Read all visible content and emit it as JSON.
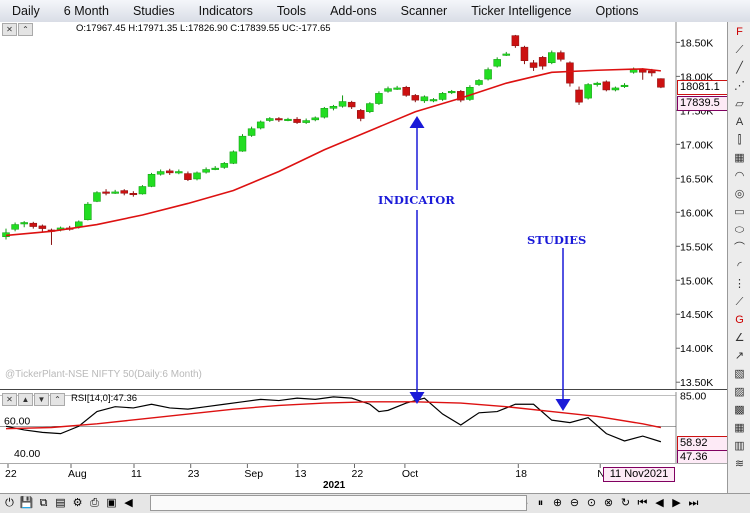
{
  "menu": [
    "Daily",
    "6 Month",
    "Studies",
    "Indicators",
    "Tools",
    "Add-ons",
    "Scanner",
    "Ticker Intelligence",
    "Options"
  ],
  "ohlc": "O:17967.45  H:17971.35  L:17826.90  C:17839.55  UC:-177.65",
  "watermark": "@TickerPlant-NSE NIFTY 50(Daily:6 Month)",
  "price_labels": {
    "sma": "18081.1",
    "close": "17839.5"
  },
  "rsi": {
    "label": "RSI[14,0]:47.36",
    "value_label": "47.36",
    "sma_label": "58.92"
  },
  "rsi_scale": [
    "85.00",
    "60.00",
    "40.00"
  ],
  "yaxis": [
    "18.50K",
    "18.00K",
    "17.50K",
    "17.00K",
    "16.50K",
    "16.00K",
    "15.50K",
    "15.00K",
    "14.50K",
    "14.00K",
    "13.50K"
  ],
  "xaxis": [
    "22",
    "Aug",
    "11",
    "23",
    "Sep",
    "13",
    "22",
    "Oct",
    "18",
    "N"
  ],
  "year": "2021",
  "date_box": "11 Nov2021",
  "annotations": {
    "indicator": "INDICATOR",
    "studies": "STUDIES"
  },
  "colors": {
    "up": "#22dd22",
    "down": "#cc1111",
    "sma": "#dd1111",
    "annotation": "#1a1ad8"
  },
  "chart_data": {
    "type": "candlestick",
    "candles": [
      {
        "x": 0,
        "o": 15640,
        "c": 15700,
        "h": 15760,
        "l": 15600
      },
      {
        "x": 1,
        "o": 15750,
        "c": 15820,
        "h": 15850,
        "l": 15720
      },
      {
        "x": 2,
        "o": 15830,
        "c": 15850,
        "h": 15870,
        "l": 15780
      },
      {
        "x": 3,
        "o": 15840,
        "c": 15790,
        "h": 15860,
        "l": 15760
      },
      {
        "x": 4,
        "o": 15800,
        "c": 15760,
        "h": 15820,
        "l": 15700
      },
      {
        "x": 5,
        "o": 15740,
        "c": 15720,
        "h": 15760,
        "l": 15520
      },
      {
        "x": 6,
        "o": 15740,
        "c": 15770,
        "h": 15790,
        "l": 15720
      },
      {
        "x": 7,
        "o": 15770,
        "c": 15760,
        "h": 15800,
        "l": 15730
      },
      {
        "x": 8,
        "o": 15780,
        "c": 15860,
        "h": 15880,
        "l": 15760
      },
      {
        "x": 9,
        "o": 15890,
        "c": 16120,
        "h": 16150,
        "l": 15880
      },
      {
        "x": 10,
        "o": 16160,
        "c": 16290,
        "h": 16310,
        "l": 16150
      },
      {
        "x": 11,
        "o": 16300,
        "c": 16280,
        "h": 16340,
        "l": 16250
      },
      {
        "x": 12,
        "o": 16290,
        "c": 16300,
        "h": 16330,
        "l": 16270
      },
      {
        "x": 13,
        "o": 16320,
        "c": 16280,
        "h": 16340,
        "l": 16250
      },
      {
        "x": 14,
        "o": 16280,
        "c": 16260,
        "h": 16310,
        "l": 16230
      },
      {
        "x": 15,
        "o": 16270,
        "c": 16380,
        "h": 16400,
        "l": 16260
      },
      {
        "x": 16,
        "o": 16380,
        "c": 16560,
        "h": 16580,
        "l": 16370
      },
      {
        "x": 17,
        "o": 16560,
        "c": 16600,
        "h": 16630,
        "l": 16540
      },
      {
        "x": 18,
        "o": 16610,
        "c": 16580,
        "h": 16640,
        "l": 16550
      },
      {
        "x": 19,
        "o": 16580,
        "c": 16600,
        "h": 16630,
        "l": 16560
      },
      {
        "x": 20,
        "o": 16570,
        "c": 16480,
        "h": 16600,
        "l": 16460
      },
      {
        "x": 21,
        "o": 16490,
        "c": 16580,
        "h": 16600,
        "l": 16470
      },
      {
        "x": 22,
        "o": 16590,
        "c": 16630,
        "h": 16660,
        "l": 16570
      },
      {
        "x": 23,
        "o": 16640,
        "c": 16650,
        "h": 16680,
        "l": 16620
      },
      {
        "x": 24,
        "o": 16660,
        "c": 16720,
        "h": 16740,
        "l": 16640
      },
      {
        "x": 25,
        "o": 16720,
        "c": 16890,
        "h": 16910,
        "l": 16710
      },
      {
        "x": 26,
        "o": 16900,
        "c": 17120,
        "h": 17150,
        "l": 16890
      },
      {
        "x": 27,
        "o": 17130,
        "c": 17230,
        "h": 17260,
        "l": 17110
      },
      {
        "x": 28,
        "o": 17240,
        "c": 17330,
        "h": 17350,
        "l": 17220
      },
      {
        "x": 29,
        "o": 17350,
        "c": 17380,
        "h": 17400,
        "l": 17330
      },
      {
        "x": 30,
        "o": 17380,
        "c": 17360,
        "h": 17400,
        "l": 17330
      },
      {
        "x": 31,
        "o": 17360,
        "c": 17370,
        "h": 17390,
        "l": 17340
      },
      {
        "x": 32,
        "o": 17370,
        "c": 17320,
        "h": 17400,
        "l": 17300
      },
      {
        "x": 33,
        "o": 17320,
        "c": 17350,
        "h": 17380,
        "l": 17300
      },
      {
        "x": 34,
        "o": 17360,
        "c": 17390,
        "h": 17410,
        "l": 17340
      },
      {
        "x": 35,
        "o": 17400,
        "c": 17530,
        "h": 17550,
        "l": 17380
      },
      {
        "x": 36,
        "o": 17530,
        "c": 17560,
        "h": 17580,
        "l": 17500
      },
      {
        "x": 37,
        "o": 17560,
        "c": 17630,
        "h": 17720,
        "l": 17540
      },
      {
        "x": 38,
        "o": 17620,
        "c": 17550,
        "h": 17640,
        "l": 17520
      },
      {
        "x": 39,
        "o": 17500,
        "c": 17380,
        "h": 17520,
        "l": 17340
      },
      {
        "x": 40,
        "o": 17480,
        "c": 17600,
        "h": 17620,
        "l": 17460
      },
      {
        "x": 41,
        "o": 17600,
        "c": 17750,
        "h": 17780,
        "l": 17580
      },
      {
        "x": 42,
        "o": 17780,
        "c": 17820,
        "h": 17850,
        "l": 17760
      },
      {
        "x": 43,
        "o": 17820,
        "c": 17830,
        "h": 17860,
        "l": 17800
      },
      {
        "x": 44,
        "o": 17840,
        "c": 17720,
        "h": 17860,
        "l": 17700
      },
      {
        "x": 45,
        "o": 17720,
        "c": 17650,
        "h": 17740,
        "l": 17620
      },
      {
        "x": 46,
        "o": 17640,
        "c": 17700,
        "h": 17720,
        "l": 17610
      },
      {
        "x": 47,
        "o": 17640,
        "c": 17660,
        "h": 17680,
        "l": 17620
      },
      {
        "x": 48,
        "o": 17660,
        "c": 17750,
        "h": 17770,
        "l": 17640
      },
      {
        "x": 49,
        "o": 17760,
        "c": 17780,
        "h": 17800,
        "l": 17740
      },
      {
        "x": 50,
        "o": 17780,
        "c": 17650,
        "h": 17800,
        "l": 17620
      },
      {
        "x": 51,
        "o": 17660,
        "c": 17840,
        "h": 17870,
        "l": 17640
      },
      {
        "x": 52,
        "o": 17880,
        "c": 17940,
        "h": 17960,
        "l": 17860
      },
      {
        "x": 53,
        "o": 17960,
        "c": 18100,
        "h": 18130,
        "l": 17940
      },
      {
        "x": 54,
        "o": 18150,
        "c": 18250,
        "h": 18280,
        "l": 18130
      },
      {
        "x": 55,
        "o": 18320,
        "c": 18330,
        "h": 18360,
        "l": 18300
      },
      {
        "x": 56,
        "o": 18600,
        "c": 18450,
        "h": 18610,
        "l": 18420
      },
      {
        "x": 57,
        "o": 18430,
        "c": 18230,
        "h": 18450,
        "l": 18180
      },
      {
        "x": 58,
        "o": 18200,
        "c": 18130,
        "h": 18240,
        "l": 18080
      },
      {
        "x": 59,
        "o": 18280,
        "c": 18150,
        "h": 18300,
        "l": 18100
      },
      {
        "x": 60,
        "o": 18200,
        "c": 18350,
        "h": 18380,
        "l": 18180
      },
      {
        "x": 61,
        "o": 18350,
        "c": 18250,
        "h": 18380,
        "l": 18220
      },
      {
        "x": 62,
        "o": 18200,
        "c": 17900,
        "h": 18220,
        "l": 17850
      },
      {
        "x": 63,
        "o": 17800,
        "c": 17620,
        "h": 17850,
        "l": 17580
      },
      {
        "x": 64,
        "o": 17680,
        "c": 17880,
        "h": 17900,
        "l": 17660
      },
      {
        "x": 65,
        "o": 17880,
        "c": 17900,
        "h": 17920,
        "l": 17850
      },
      {
        "x": 66,
        "o": 17920,
        "c": 17800,
        "h": 17940,
        "l": 17780
      },
      {
        "x": 67,
        "o": 17800,
        "c": 17830,
        "h": 17850,
        "l": 17780
      },
      {
        "x": 68,
        "o": 17850,
        "c": 17870,
        "h": 17900,
        "l": 17830
      },
      {
        "x": 69,
        "o": 18060,
        "c": 18100,
        "h": 18130,
        "l": 18040
      },
      {
        "x": 70,
        "o": 18100,
        "c": 18060,
        "h": 18120,
        "l": 17950
      },
      {
        "x": 71,
        "o": 18080,
        "c": 18050,
        "h": 18110,
        "l": 18000
      },
      {
        "x": 72,
        "o": 17967,
        "c": 17840,
        "h": 17971,
        "l": 17827
      }
    ],
    "sma": [
      [
        0,
        15660
      ],
      [
        5,
        15720
      ],
      [
        10,
        15820
      ],
      [
        15,
        15960
      ],
      [
        20,
        16130
      ],
      [
        25,
        16320
      ],
      [
        30,
        16600
      ],
      [
        35,
        16920
      ],
      [
        40,
        17200
      ],
      [
        45,
        17480
      ],
      [
        50,
        17680
      ],
      [
        55,
        17900
      ],
      [
        60,
        18060
      ],
      [
        65,
        18090
      ],
      [
        70,
        18110
      ],
      [
        72,
        18081
      ]
    ],
    "rsi": [
      [
        0,
        60
      ],
      [
        2,
        57
      ],
      [
        4,
        55
      ],
      [
        6,
        54
      ],
      [
        8,
        60
      ],
      [
        10,
        72
      ],
      [
        12,
        76
      ],
      [
        14,
        75
      ],
      [
        16,
        78
      ],
      [
        18,
        75
      ],
      [
        20,
        74
      ],
      [
        22,
        76
      ],
      [
        24,
        78
      ],
      [
        26,
        80
      ],
      [
        28,
        82
      ],
      [
        30,
        81
      ],
      [
        32,
        83
      ],
      [
        34,
        82
      ],
      [
        36,
        84
      ],
      [
        38,
        83
      ],
      [
        40,
        78
      ],
      [
        41,
        72
      ],
      [
        42,
        73
      ],
      [
        44,
        79
      ],
      [
        46,
        83
      ],
      [
        48,
        70
      ],
      [
        50,
        61
      ],
      [
        51,
        66
      ],
      [
        52,
        71
      ],
      [
        54,
        72
      ],
      [
        56,
        78
      ],
      [
        58,
        78
      ],
      [
        60,
        65
      ],
      [
        62,
        63
      ],
      [
        64,
        67
      ],
      [
        66,
        54
      ],
      [
        68,
        48
      ],
      [
        70,
        52
      ],
      [
        72,
        47.36
      ]
    ],
    "rsi_sma": [
      [
        0,
        58
      ],
      [
        5,
        59
      ],
      [
        10,
        62
      ],
      [
        15,
        66
      ],
      [
        20,
        70
      ],
      [
        25,
        74
      ],
      [
        30,
        77
      ],
      [
        35,
        79
      ],
      [
        40,
        80
      ],
      [
        45,
        80
      ],
      [
        50,
        79
      ],
      [
        55,
        76
      ],
      [
        60,
        72
      ],
      [
        65,
        68
      ],
      [
        70,
        62
      ],
      [
        72,
        58.92
      ]
    ],
    "ylim": [
      13400,
      18800
    ],
    "rsi_ylim": [
      30,
      88
    ],
    "x_range": [
      0,
      73
    ]
  }
}
